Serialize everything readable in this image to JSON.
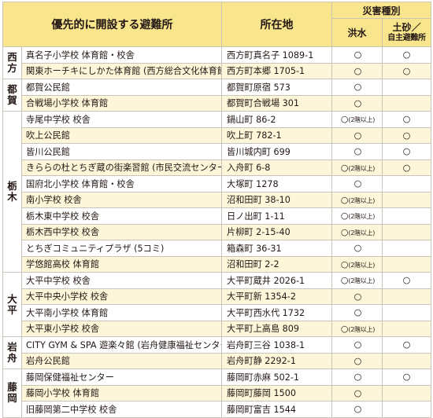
{
  "header": {
    "name": "優先的に開設する避難所",
    "address": "所在地",
    "hazard": "災害種別",
    "flood": "洪水",
    "landslide_1": "土砂／",
    "landslide_2": "自主避難所"
  },
  "groups": [
    {
      "area": "西方",
      "rows": [
        {
          "name": "真名子小学校 体育館・校舎",
          "address": "西方町真名子 1089-1",
          "flood": "○",
          "landslide": "○"
        },
        {
          "name": "関東ホーチキにしかた体育館 (西方総合文化体育館)",
          "address": "西方町本郷 1705-1",
          "flood": "○",
          "landslide": "○"
        }
      ]
    },
    {
      "area": "都賀",
      "rows": [
        {
          "name": "都賀公民館",
          "address": "都賀町原宿 573",
          "flood": "○",
          "landslide": ""
        },
        {
          "name": "合戦場小学校 体育館",
          "address": "都賀町合戦場 301",
          "flood": "○",
          "landslide": ""
        }
      ]
    },
    {
      "area": "栃木",
      "rows": [
        {
          "name": "寺尾中学校 校舎",
          "address": "鍋山町 86-2",
          "flood": "○(2階以上)",
          "landslide": "○"
        },
        {
          "name": "吹上公民館",
          "address": "吹上町 782-1",
          "flood": "○",
          "landslide": "○"
        },
        {
          "name": "皆川公民館",
          "address": "皆川城内町 699",
          "flood": "○",
          "landslide": "○"
        },
        {
          "name": "きららの杜とちぎ蔵の街楽習館 (市民交流センター)",
          "address": "入舟町 6-8",
          "flood": "○(2階以上)",
          "landslide": "○"
        },
        {
          "name": "国府北小学校 体育館・校舎",
          "address": "大塚町 1278",
          "flood": "○",
          "landslide": ""
        },
        {
          "name": "南小学校 校舎",
          "address": "沼和田町 38-10",
          "flood": "○(2階以上)",
          "landslide": ""
        },
        {
          "name": "栃木東中学校 校舎",
          "address": "日ノ出町 1-11",
          "flood": "○(2階以上)",
          "landslide": ""
        },
        {
          "name": "栃木西中学校 校舎",
          "address": "片柳町 2-15-40",
          "flood": "○(2階以上)",
          "landslide": ""
        },
        {
          "name": "とちぎコミュニティプラザ (5コミ)",
          "address": "箱森町 36-31",
          "flood": "○",
          "landslide": ""
        },
        {
          "name": "学悠館高校 体育館",
          "address": "沼和田町 2-2",
          "flood": "○(2階以上)",
          "landslide": ""
        }
      ]
    },
    {
      "area": "大平",
      "rows": [
        {
          "name": "大平中学校 校舎",
          "address": "大平町蔵井 2026-1",
          "flood": "○(2階以上)",
          "landslide": "○"
        },
        {
          "name": "大平中央小学校 校舎",
          "address": "大平町新 1354-2",
          "flood": "○",
          "landslide": ""
        },
        {
          "name": "大平南小学校 体育館",
          "address": "大平町西水代 1732",
          "flood": "○",
          "landslide": ""
        },
        {
          "name": "大平東小学校 校舎",
          "address": "大平町上高島 809",
          "flood": "○(2階以上)",
          "landslide": ""
        }
      ]
    },
    {
      "area": "岩舟",
      "rows": [
        {
          "name": "CITY GYM & SPA 遊楽々館 (岩舟健康福祉センター)",
          "address": "岩舟町三谷 1038-1",
          "flood": "○",
          "landslide": "○"
        },
        {
          "name": "岩舟公民館",
          "address": "岩舟町静 2292-1",
          "flood": "○",
          "landslide": ""
        }
      ]
    },
    {
      "area": "藤岡",
      "rows": [
        {
          "name": "藤岡保健福祉センター",
          "address": "藤岡町赤麻 502-1",
          "flood": "○",
          "landslide": "○"
        },
        {
          "name": "藤岡小学校 体育館",
          "address": "藤岡町藤岡 1500",
          "flood": "○",
          "landslide": ""
        },
        {
          "name": "旧藤岡第二中学校 校舎",
          "address": "藤岡町富吉 1544",
          "flood": "○",
          "landslide": ""
        }
      ]
    }
  ]
}
